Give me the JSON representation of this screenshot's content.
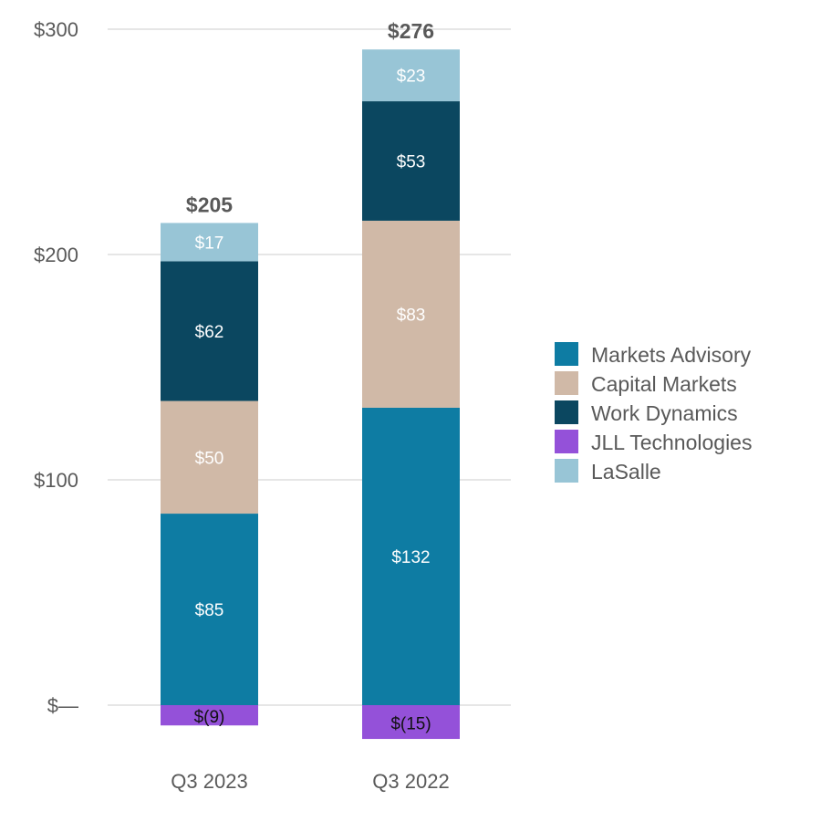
{
  "chart_data": {
    "type": "bar",
    "stacked": true,
    "categories": [
      "Q3 2023",
      "Q3 2022"
    ],
    "series": [
      {
        "name": "Markets Advisory",
        "values": [
          85,
          132
        ],
        "labels": [
          "$85",
          "$132"
        ],
        "color": "#0e7ca3"
      },
      {
        "name": "Capital Markets",
        "values": [
          50,
          83
        ],
        "labels": [
          "$50",
          "$83"
        ],
        "color": "#d0b9a7"
      },
      {
        "name": "Work Dynamics",
        "values": [
          62,
          53
        ],
        "labels": [
          "$62",
          "$53"
        ],
        "color": "#0b4760"
      },
      {
        "name": "JLL Technologies",
        "values": [
          -9,
          -15
        ],
        "labels": [
          "$(9)",
          "$(15)"
        ],
        "color": "#9451d9"
      },
      {
        "name": "LaSalle",
        "values": [
          17,
          23
        ],
        "labels": [
          "$17",
          "$23"
        ],
        "color": "#98c5d6"
      }
    ],
    "totals": [
      205,
      276
    ],
    "total_labels": [
      "$205",
      "$276"
    ],
    "ylim": [
      -15,
      300
    ],
    "yticks": [
      0,
      100,
      200,
      300
    ],
    "ytick_labels": [
      "$—",
      "$100",
      "$200",
      "$300"
    ],
    "grid": true,
    "legend_position": "right",
    "title": "",
    "xlabel": "",
    "ylabel": ""
  }
}
